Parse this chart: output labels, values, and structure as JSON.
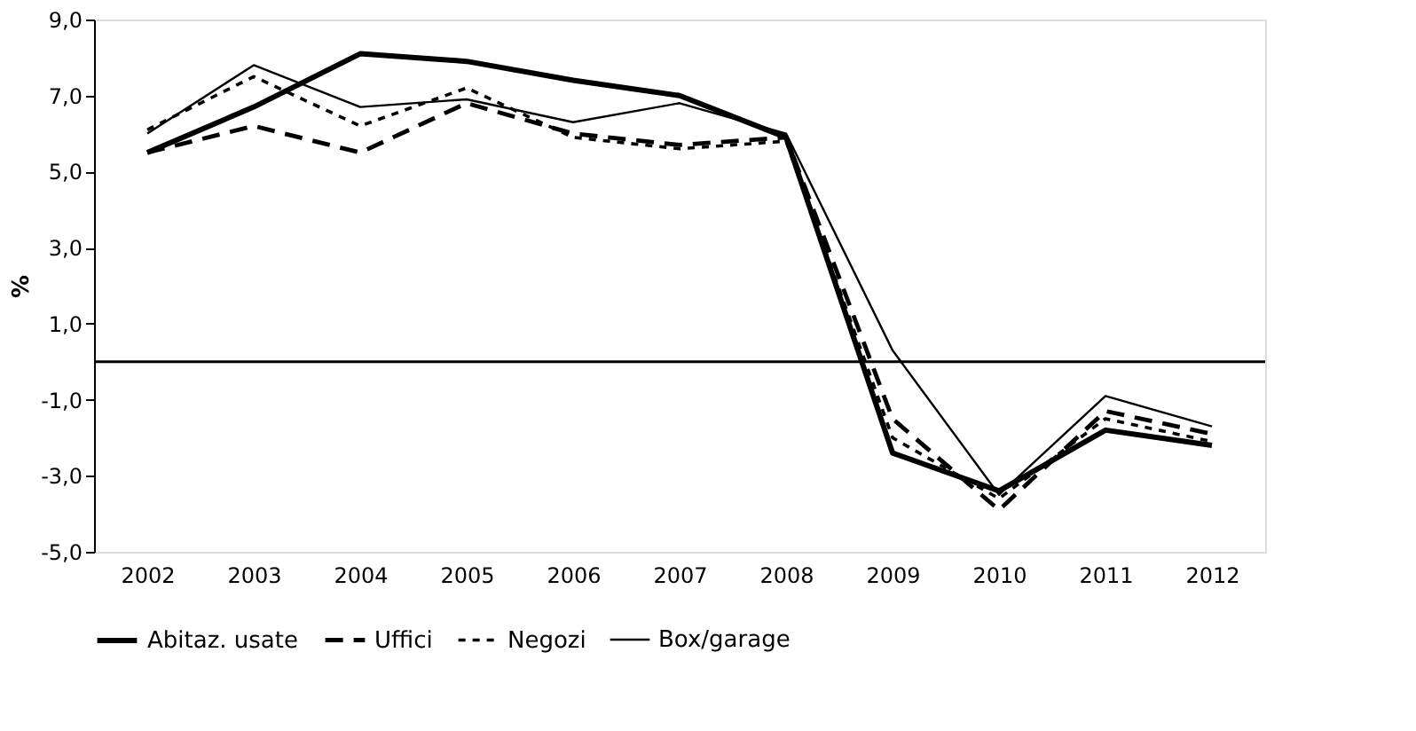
{
  "chart_data": {
    "type": "line",
    "ylabel": "%",
    "categories": [
      "2002",
      "2003",
      "2004",
      "2005",
      "2006",
      "2007",
      "2008",
      "2009",
      "2010",
      "2011",
      "2012"
    ],
    "ylim": [
      -5,
      9
    ],
    "yticks": [
      {
        "value": 9,
        "label": "9,0"
      },
      {
        "value": 7,
        "label": "7,0"
      },
      {
        "value": 5,
        "label": "5,0"
      },
      {
        "value": 3,
        "label": "3,0"
      },
      {
        "value": 1,
        "label": "1,0"
      },
      {
        "value": -1,
        "label": "-1,0"
      },
      {
        "value": -3,
        "label": "-3,0"
      },
      {
        "value": -5,
        "label": "-5,0"
      }
    ],
    "grid": false,
    "legend": "bottom",
    "marker": "none",
    "ref_lines": [
      {
        "axis": "y",
        "value": 0,
        "color": "#000000",
        "line_style": "solid"
      }
    ],
    "series": [
      {
        "name": "Abitaz. usate",
        "color": "#000000",
        "line_style": "solid",
        "values": [
          5.5,
          6.7,
          8.1,
          7.9,
          7.4,
          7.0,
          5.9,
          -2.4,
          -3.4,
          -1.8,
          -2.2
        ]
      },
      {
        "name": "Uffici",
        "color": "#000000",
        "line_style": "dashed",
        "values": [
          5.5,
          6.2,
          5.5,
          6.8,
          6.0,
          5.7,
          5.9,
          -1.5,
          -3.9,
          -1.3,
          -1.9
        ]
      },
      {
        "name": "Negozi",
        "color": "#000000",
        "line_style": "dotted",
        "values": [
          6.1,
          7.5,
          6.2,
          7.2,
          5.9,
          5.6,
          5.8,
          -2.0,
          -3.6,
          -1.5,
          -2.1
        ]
      },
      {
        "name": "Box/garage",
        "color": "#000000",
        "line_style": "solid",
        "values": [
          6.0,
          7.8,
          6.7,
          6.9,
          6.3,
          6.8,
          6.0,
          0.3,
          -3.5,
          -0.9,
          -1.7
        ]
      }
    ]
  }
}
